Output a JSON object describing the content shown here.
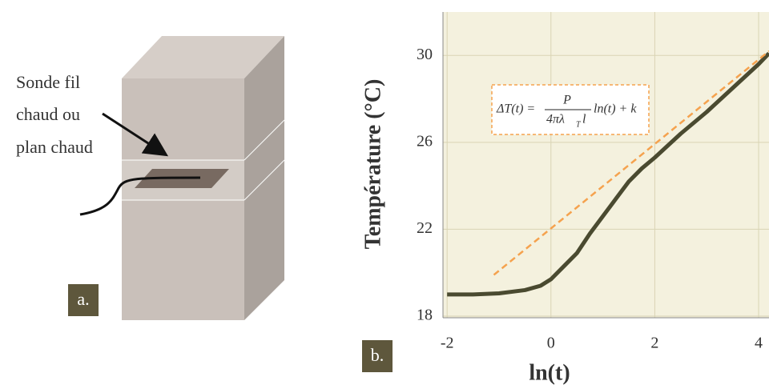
{
  "diagram": {
    "probe_label": [
      "Sonde fil",
      "chaud ou",
      "plan chaud"
    ],
    "panel_label": "a."
  },
  "chart_data": {
    "type": "line",
    "panel_label": "b.",
    "y_label": "Température (°C)",
    "x_label": "ln(t)",
    "formula": {
      "lhs": "ΔT(t) =",
      "numerator": "P",
      "denominator": "4πλ",
      "subscript": "T",
      "denominator_end": "l",
      "rhs": "ln(t) + k"
    },
    "xlim": [
      -2.08,
      4.2
    ],
    "ylim": [
      18,
      32
    ],
    "xticks": [
      -2,
      0,
      2,
      4
    ],
    "yticks": [
      18,
      22,
      26,
      30
    ],
    "grid": true,
    "series": [
      {
        "color": "#4a4a30",
        "x": [
          -2.0,
          -1.5,
          -1.0,
          -0.5,
          -0.2,
          0.0,
          0.25,
          0.5,
          0.75,
          1.0,
          1.25,
          1.5,
          1.75,
          2.0,
          2.5,
          3.0,
          3.5,
          4.0,
          4.2
        ],
        "values": [
          19.0,
          19.0,
          19.05,
          19.2,
          19.4,
          19.7,
          20.3,
          20.9,
          21.8,
          22.6,
          23.4,
          24.2,
          24.8,
          25.3,
          26.4,
          27.4,
          28.5,
          29.6,
          30.1
        ]
      },
      {
        "color": "#f5a24e",
        "dash": true,
        "x": [
          -1.1,
          4.2
        ],
        "values": [
          19.9,
          30.2
        ]
      }
    ]
  }
}
